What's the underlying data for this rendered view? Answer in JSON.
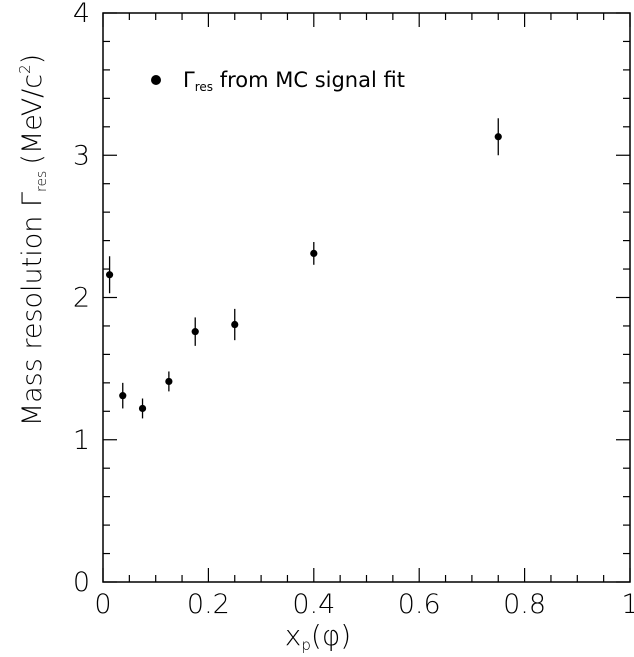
{
  "chart_data": {
    "type": "scatter",
    "xlabel": {
      "main": "x",
      "sub": "p",
      "paren": "(φ)"
    },
    "ylabel": {
      "main": "Mass resolution Γ",
      "sub": "res",
      "unit": "(MeV/c",
      "sup": "2",
      "close": ")"
    },
    "xlim": [
      0,
      1
    ],
    "ylim": [
      0,
      4
    ],
    "x_ticks": [
      0,
      0.2,
      0.4,
      0.6,
      0.8,
      1
    ],
    "x_tick_labels": [
      "0",
      "0.2",
      "0.4",
      "0.6",
      "0.8",
      "1"
    ],
    "y_ticks": [
      0,
      1,
      2,
      3,
      4
    ],
    "y_tick_labels": [
      "0",
      "1",
      "2",
      "3",
      "4"
    ],
    "grid": false,
    "legend_position": "top-left",
    "series": [
      {
        "name": "Γres from MC signal fit",
        "legend": {
          "main": "Γ",
          "sub": "res",
          "rest": " from MC signal fit"
        },
        "points": [
          {
            "x": 0.0125,
            "y": 2.16,
            "err": 0.13
          },
          {
            "x": 0.0375,
            "y": 1.31,
            "err": 0.09
          },
          {
            "x": 0.075,
            "y": 1.22,
            "err": 0.07
          },
          {
            "x": 0.125,
            "y": 1.41,
            "err": 0.07
          },
          {
            "x": 0.175,
            "y": 1.76,
            "err": 0.1
          },
          {
            "x": 0.25,
            "y": 1.81,
            "err": 0.11
          },
          {
            "x": 0.4,
            "y": 2.31,
            "err": 0.08
          },
          {
            "x": 0.75,
            "y": 3.13,
            "err": 0.13
          }
        ]
      }
    ]
  }
}
